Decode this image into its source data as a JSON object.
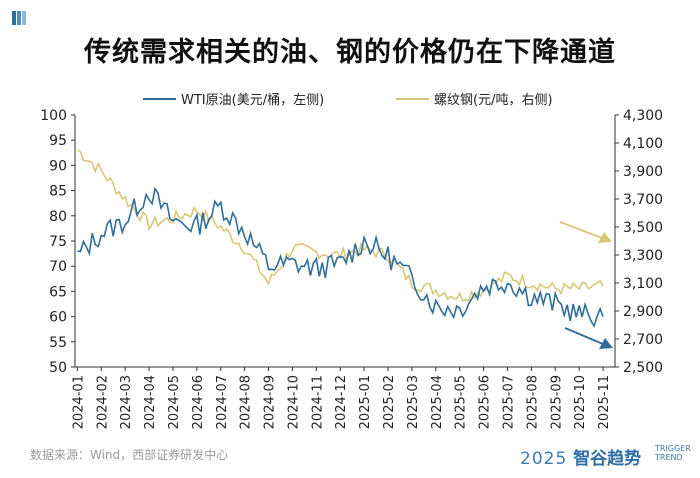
{
  "chart_data": {
    "type": "line",
    "title": "传统需求相关的油、钢的价格仍在下降通道",
    "source": "数据来源：Wind，西部证券研发中心",
    "brand": {
      "year": "2025",
      "name": "智谷趋势",
      "en_line1": "TRIGGER",
      "en_line2": "TREND"
    },
    "categories": [
      "2024-01",
      "2024-02",
      "2024-03",
      "2024-04",
      "2024-05",
      "2024-06",
      "2024-07",
      "2024-08",
      "2024-09",
      "2024-10",
      "2024-11",
      "2024-12",
      "2025-01",
      "2025-02",
      "2025-03",
      "2025-04",
      "2025-05",
      "2025-06",
      "2025-07",
      "2025-08",
      "2025-09",
      "2025-10",
      "2025-11"
    ],
    "left_axis": {
      "label": "WTI原油(美元/桶，左侧)",
      "min": 50,
      "max": 100,
      "ticks": [
        "50",
        "55",
        "60",
        "65",
        "70",
        "75",
        "80",
        "85",
        "90",
        "95",
        "100"
      ]
    },
    "right_axis": {
      "label": "螺纹钢(元/吨，右侧)",
      "min": 2500,
      "max": 4300,
      "ticks": [
        "2,500",
        "2,700",
        "2,900",
        "3,100",
        "3,300",
        "3,500",
        "3,700",
        "3,900",
        "4,100",
        "4,300"
      ]
    },
    "series": [
      {
        "name": "WTI原油(美元/桶，左侧)",
        "axis": "left",
        "color": "#2f6e9a",
        "values": [
          72,
          76.5,
          79,
          85,
          79,
          78,
          82,
          77,
          70,
          70.5,
          69.5,
          70.5,
          75,
          72,
          67.5,
          62,
          61.5,
          66,
          67,
          64,
          62.5,
          60.5,
          60
        ]
      },
      {
        "name": "螺纹钢(元/吨，右侧)",
        "axis": "right",
        "color": "#d8c777",
        "values": [
          4050,
          3900,
          3700,
          3520,
          3560,
          3620,
          3500,
          3350,
          3100,
          3350,
          3320,
          3300,
          3340,
          3300,
          3100,
          3050,
          3000,
          3050,
          3150,
          3100,
          3060,
          3060,
          3080
        ]
      }
    ],
    "annotations": [
      {
        "type": "arrow",
        "target": "螺纹钢(元/吨，右侧)",
        "direction": "down",
        "color": "#d8c777"
      },
      {
        "type": "arrow",
        "target": "WTI原油(美元/桶，左侧)",
        "direction": "down",
        "color": "#2f6e9a"
      }
    ],
    "grid": false,
    "legend": "top"
  }
}
